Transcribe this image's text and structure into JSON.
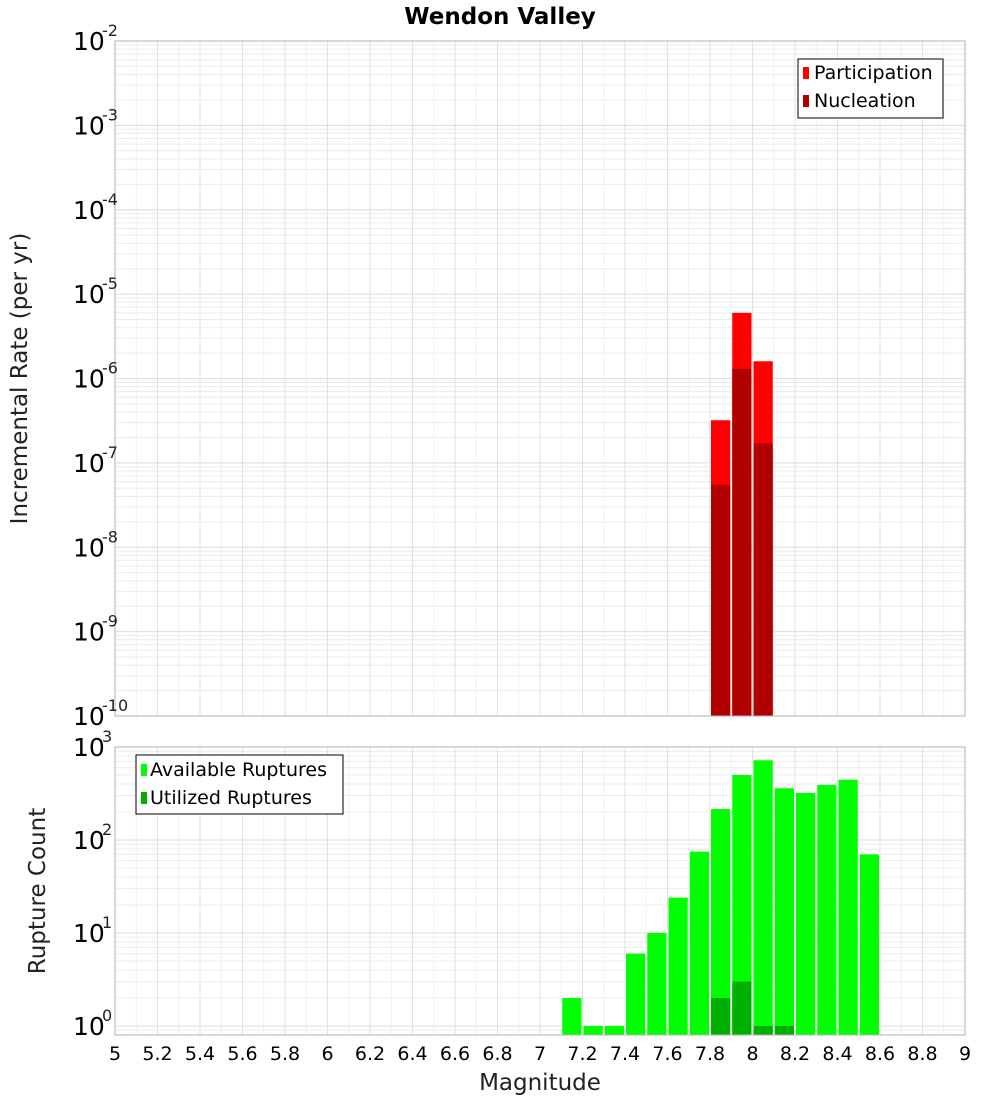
{
  "chart_data": [
    {
      "type": "bar",
      "title": "Wendon Valley",
      "xlabel": "",
      "ylabel": "Incremental Rate (per yr)",
      "yscale": "log",
      "ylim": [
        1e-10,
        0.01
      ],
      "xlim": [
        5,
        9
      ],
      "ytick_labels": [
        {
          "base": "10",
          "exp": "-10"
        },
        {
          "base": "10",
          "exp": "-9"
        },
        {
          "base": "10",
          "exp": "-8"
        },
        {
          "base": "10",
          "exp": "-7"
        },
        {
          "base": "10",
          "exp": "-6"
        },
        {
          "base": "10",
          "exp": "-5"
        },
        {
          "base": "10",
          "exp": "-4"
        },
        {
          "base": "10",
          "exp": "-3"
        },
        {
          "base": "10",
          "exp": "-2"
        }
      ],
      "legend_position": "top-right",
      "series": [
        {
          "name": "Participation",
          "color": "#ff0000",
          "x": [
            7.85,
            7.95,
            8.05
          ],
          "values": [
            3.2e-07,
            6e-06,
            1.6e-06
          ]
        },
        {
          "name": "Nucleation",
          "color": "#b00000",
          "x": [
            7.85,
            7.95,
            8.05
          ],
          "values": [
            5.5e-08,
            1.3e-06,
            1.7e-07
          ]
        }
      ]
    },
    {
      "type": "bar",
      "title": "",
      "xlabel": "Magnitude",
      "ylabel": "Rupture Count",
      "yscale": "log",
      "ylim": [
        0.8,
        1000
      ],
      "xlim": [
        5,
        9
      ],
      "ytick_labels": [
        {
          "base": "10",
          "exp": "0"
        },
        {
          "base": "10",
          "exp": "1"
        },
        {
          "base": "10",
          "exp": "2"
        },
        {
          "base": "10",
          "exp": "3"
        }
      ],
      "xtick_labels": [
        "5",
        "5.2",
        "5.4",
        "5.6",
        "5.8",
        "6",
        "6.2",
        "6.4",
        "6.6",
        "6.8",
        "7",
        "7.2",
        "7.4",
        "7.6",
        "7.8",
        "8",
        "8.2",
        "8.4",
        "8.6",
        "8.8",
        "9"
      ],
      "legend_position": "top-left",
      "series": [
        {
          "name": "Available Ruptures",
          "color": "#00ff00",
          "x": [
            7.15,
            7.25,
            7.35,
            7.45,
            7.55,
            7.65,
            7.75,
            7.85,
            7.95,
            8.05,
            8.15,
            8.25,
            8.35,
            8.45,
            8.55
          ],
          "values": [
            2,
            1,
            1,
            6,
            10,
            24,
            75,
            215,
            500,
            720,
            360,
            320,
            390,
            445,
            70
          ]
        },
        {
          "name": "Utilized Ruptures",
          "color": "#00b000",
          "x": [
            7.85,
            7.95,
            8.05,
            8.15
          ],
          "values": [
            2,
            3,
            1,
            1
          ]
        }
      ]
    }
  ]
}
